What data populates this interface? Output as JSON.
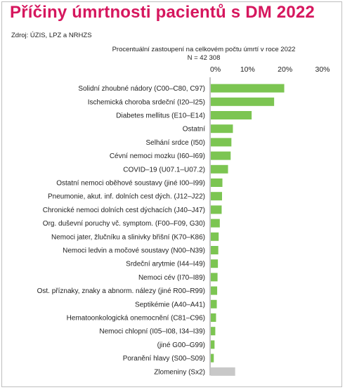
{
  "header": {
    "title": "Příčiny úmrtnosti pacientů s DM 2022",
    "source": "Zdroj: ÚZIS, LPZ a NRHZS"
  },
  "chart_data": {
    "type": "bar",
    "orientation": "horizontal",
    "title": "Procentuální zastoupení na celkovém počtu úmrtí v roce 2022",
    "subtitle": "N = 42 308",
    "xlim": [
      0,
      30
    ],
    "xticks": [
      "0%",
      "10%",
      "20%",
      "30%"
    ],
    "tick_values": [
      0,
      10,
      20,
      30
    ],
    "grid": false,
    "colors": {
      "main": "#7cc552",
      "other": "#c8c8c8",
      "axis": "#888888"
    },
    "categories": [
      "Solidní zhoubné nádory (C00–C80, C97)",
      "Ischemická choroba srdeční (I20–I25)",
      "Diabetes mellitus (E10–E14)",
      "Ostatní",
      "Selhání srdce (I50)",
      "Cévní nemoci mozku (I60–I69)",
      "COVID–19 (U07.1–U07.2)",
      "Ostatní nemoci oběhové soustavy (jiné I00–I99)",
      "Pneumonie, akut. inf. dolních cest dých. (J12–J22)",
      "Chronické nemoci dolních cest dýchacích (J40–J47)",
      "Org. duševní poruchy vč. symptom. (F00–F09, G30)",
      "Nemoci jater, žlučníku a slinivky břišní (K70–K86)",
      "Nemoci ledvin a močové soustavy (N00–N39)",
      "Srdeční arytmie (I44–I49)",
      "Nemoci cév (I70–I89)",
      "Ost. příznaky, znaky a abnorm. nálezy (jiné R00–R99)",
      "Septikémie (A40–A41)",
      "Hematoonkologická onemocnění (C81–C96)",
      "Nemoci chlopní (I05–I08, I34–I39)",
      "(jiné G00–G99)",
      "Poranění hlavy (S00–S09)",
      "Zlomeniny (Sx2)"
    ],
    "values": [
      19.6,
      16.9,
      10.9,
      5.9,
      5.5,
      5.3,
      4.6,
      3.1,
      3.0,
      2.9,
      2.4,
      2.1,
      2.0,
      1.9,
      1.8,
      1.7,
      1.6,
      1.4,
      1.2,
      1.0,
      0.8,
      6.5
    ],
    "bar_color_keys": [
      "main",
      "main",
      "main",
      "main",
      "main",
      "main",
      "main",
      "main",
      "main",
      "main",
      "main",
      "main",
      "main",
      "main",
      "main",
      "main",
      "main",
      "main",
      "main",
      "main",
      "main",
      "other"
    ]
  }
}
